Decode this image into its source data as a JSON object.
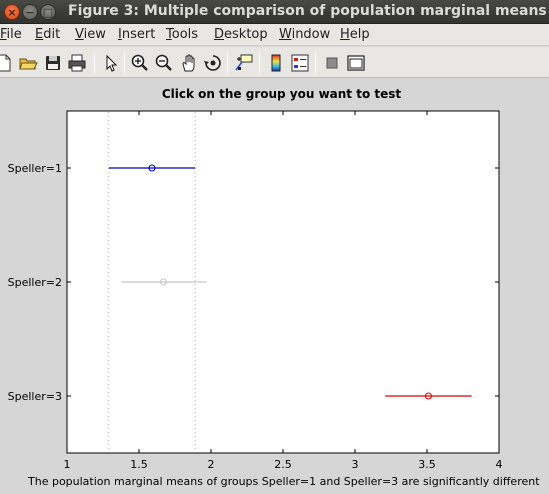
{
  "window": {
    "title": "Figure 3: Multiple comparison of population marginal means",
    "close_glyph": "×",
    "min_glyph": "−",
    "max_glyph": "□"
  },
  "menu": [
    {
      "pre": "",
      "u": "F",
      "post": "ile"
    },
    {
      "pre": "",
      "u": "E",
      "post": "dit"
    },
    {
      "pre": "",
      "u": "V",
      "post": "iew"
    },
    {
      "pre": "",
      "u": "I",
      "post": "nsert"
    },
    {
      "pre": "",
      "u": "T",
      "post": "ools"
    },
    {
      "pre": "",
      "u": "D",
      "post": "esktop"
    },
    {
      "pre": "",
      "u": "W",
      "post": "indow"
    },
    {
      "pre": "",
      "u": "H",
      "post": "elp"
    }
  ],
  "toolbar": {
    "buttons": [
      "new-file-icon",
      "open-folder-icon",
      "save-icon",
      "print-icon",
      "pointer-icon",
      "zoom-in-icon",
      "zoom-out-icon",
      "pan-hand-icon",
      "rotate-3d-icon",
      "data-cursor-icon",
      "colorbar-icon",
      "legend-icon",
      "hide-plot-tools-icon",
      "show-plot-tools-icon"
    ]
  },
  "chart_data": {
    "type": "interval",
    "title": "Click on the group you want to test",
    "xlabel": "",
    "ylabel": "",
    "xlim": [
      1,
      4
    ],
    "xticks": [
      1,
      1.5,
      2,
      2.5,
      3,
      3.5,
      4
    ],
    "xtick_labels": [
      "1",
      "1.5",
      "2",
      "2.5",
      "3",
      "3.5",
      "4"
    ],
    "reference_lines": [
      1.29,
      1.89
    ],
    "groups": [
      {
        "label": "Speller=1",
        "mean": 1.59,
        "lower": 1.29,
        "upper": 1.89,
        "color": "#0000cc"
      },
      {
        "label": "Speller=2",
        "mean": 1.67,
        "lower": 1.38,
        "upper": 1.97,
        "color": "#c8c8c8"
      },
      {
        "label": "Speller=3",
        "mean": 3.51,
        "lower": 3.21,
        "upper": 3.81,
        "color": "#dd0000"
      }
    ],
    "grid": false,
    "footer": "The population marginal means of groups Speller=1 and Speller=3 are significantly different"
  },
  "colors": {
    "titlebar": "#3c3c38",
    "menubar": "#e8e7e3",
    "figure_bg": "#d6d6d6",
    "axes_bg": "#ffffff"
  }
}
